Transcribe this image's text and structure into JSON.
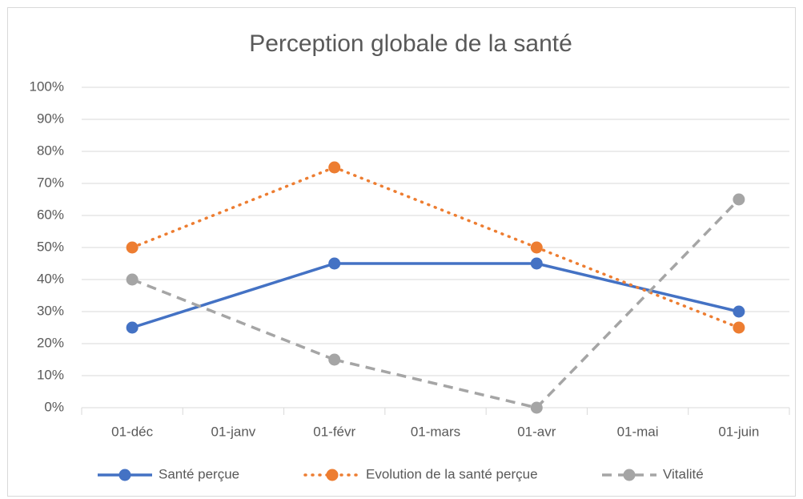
{
  "chart_data": {
    "type": "line",
    "title": "Perception globale de la santé",
    "categories": [
      "01-déc",
      "01-janv",
      "01-févr",
      "01-mars",
      "01-avr",
      "01-mai",
      "01-juin"
    ],
    "series": [
      {
        "name": "Santé perçue",
        "color": "#4472c4",
        "style": "solid",
        "values": [
          25,
          null,
          45,
          null,
          45,
          null,
          30
        ]
      },
      {
        "name": "Evolution de la santé perçue",
        "color": "#ed7d31",
        "style": "dotted",
        "values": [
          50,
          null,
          75,
          null,
          50,
          null,
          25
        ]
      },
      {
        "name": "Vitalité",
        "color": "#a5a5a5",
        "style": "dashed",
        "values": [
          40,
          null,
          15,
          null,
          0,
          null,
          65
        ]
      }
    ],
    "ylim": [
      0,
      100
    ],
    "yticks": [
      {
        "value": 0,
        "label": "0%"
      },
      {
        "value": 10,
        "label": "10%"
      },
      {
        "value": 20,
        "label": "20%"
      },
      {
        "value": 30,
        "label": "30%"
      },
      {
        "value": 40,
        "label": "40%"
      },
      {
        "value": 50,
        "label": "50%"
      },
      {
        "value": 60,
        "label": "60%"
      },
      {
        "value": 70,
        "label": "70%"
      },
      {
        "value": 80,
        "label": "80%"
      },
      {
        "value": 90,
        "label": "90%"
      },
      {
        "value": 100,
        "label": "100%"
      }
    ],
    "grid": true,
    "legend": "bottom"
  }
}
